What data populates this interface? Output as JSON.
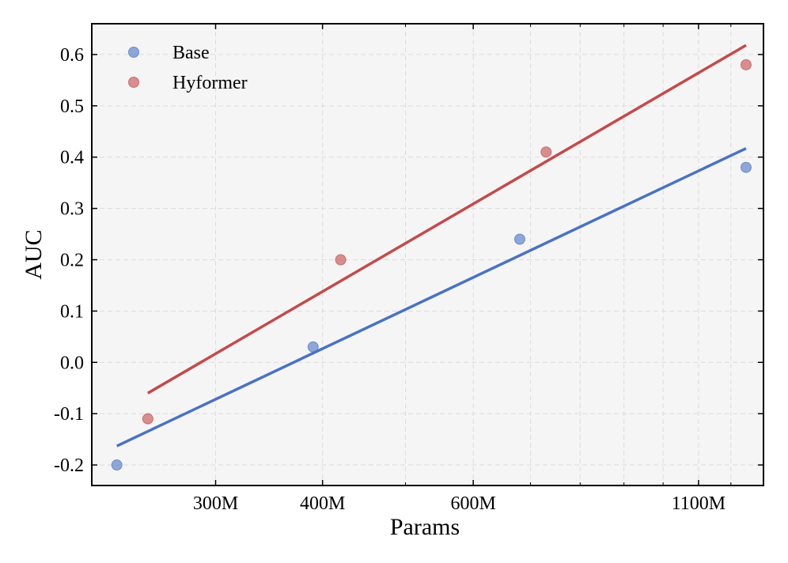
{
  "chart_data": {
    "type": "scatter",
    "xlabel": "Params",
    "ylabel": "AUC",
    "x_scale": "log",
    "xlim": [
      215,
      1310
    ],
    "ylim": [
      -0.24,
      0.66
    ],
    "x_ticks": [
      {
        "value": 300,
        "label": "300M"
      },
      {
        "value": 400,
        "label": "400M"
      },
      {
        "value": 600,
        "label": "600M"
      },
      {
        "value": 1100,
        "label": "1100M"
      }
    ],
    "x_minor_ticks": [
      500,
      700,
      800,
      900,
      1000,
      1200
    ],
    "y_ticks": [
      {
        "value": -0.2,
        "label": "-0.2"
      },
      {
        "value": -0.1,
        "label": "-0.1"
      },
      {
        "value": 0.0,
        "label": "0.0"
      },
      {
        "value": 0.1,
        "label": "0.1"
      },
      {
        "value": 0.2,
        "label": "0.2"
      },
      {
        "value": 0.3,
        "label": "0.3"
      },
      {
        "value": 0.4,
        "label": "0.4"
      },
      {
        "value": 0.5,
        "label": "0.5"
      },
      {
        "value": 0.6,
        "label": "0.6"
      }
    ],
    "grid": true,
    "legend_position": "top-left",
    "series": [
      {
        "name": "Base",
        "color": "#4a72c4",
        "points": [
          {
            "x": 230,
            "y": -0.2
          },
          {
            "x": 390,
            "y": 0.03
          },
          {
            "x": 680,
            "y": 0.24
          },
          {
            "x": 1250,
            "y": 0.38
          }
        ],
        "fit_line": [
          {
            "x": 230,
            "y": -0.163
          },
          {
            "x": 1250,
            "y": 0.417
          }
        ]
      },
      {
        "name": "Hyformer",
        "color": "#c44a4a",
        "points": [
          {
            "x": 250,
            "y": -0.11
          },
          {
            "x": 420,
            "y": 0.2
          },
          {
            "x": 730,
            "y": 0.41
          },
          {
            "x": 1250,
            "y": 0.58
          }
        ],
        "fit_line": [
          {
            "x": 250,
            "y": -0.06
          },
          {
            "x": 1250,
            "y": 0.618
          }
        ]
      }
    ]
  }
}
